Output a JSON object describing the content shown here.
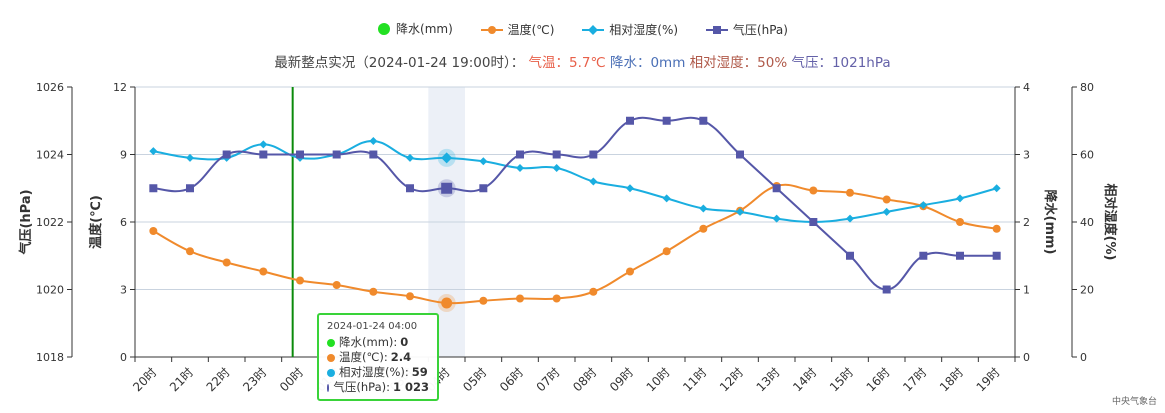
{
  "legend": {
    "items": [
      {
        "label": "降水(mm)",
        "color": "#22e022",
        "marker": "circle"
      },
      {
        "label": "温度(℃)",
        "color": "#f08a2c",
        "marker": "line-circle"
      },
      {
        "label": "相对湿度(%)",
        "color": "#1aaee0",
        "marker": "line-diamond"
      },
      {
        "label": "气压(hPa)",
        "color": "#5557a8",
        "marker": "line-square"
      }
    ]
  },
  "subtitle": {
    "prefix": "最新整点实况（2024-01-24 19:00时）：",
    "temp": "气温：5.7℃",
    "rain": "降水：0mm",
    "hum": "相对湿度：50%",
    "pres": "气压：1021hPa"
  },
  "tooltip": {
    "time": "2024-01-24 04:00",
    "rows": [
      {
        "label": "降水(mm):",
        "value": "0",
        "color": "#22e022"
      },
      {
        "label": "温度(℃):",
        "value": "2.4",
        "color": "#f08a2c"
      },
      {
        "label": "相对湿度(%):",
        "value": "59",
        "color": "#1aaee0"
      },
      {
        "label": "气压(hPa):",
        "value": "1 023",
        "color": "#5557a8"
      }
    ]
  },
  "source": "中央气象台",
  "chart_data": {
    "type": "line",
    "categories": [
      "20时",
      "21时",
      "22时",
      "23时",
      "00时",
      "01时",
      "02时",
      "03时",
      "04时",
      "05时",
      "06时",
      "07时",
      "08时",
      "09时",
      "10时",
      "11时",
      "12时",
      "13时",
      "14时",
      "15时",
      "16时",
      "17时",
      "18时",
      "19时"
    ],
    "series": [
      {
        "name": "温度(℃)",
        "axis": "temp",
        "color": "#f08a2c",
        "marker": "circle",
        "values": [
          5.6,
          4.7,
          4.2,
          3.8,
          3.4,
          3.2,
          2.9,
          2.7,
          2.4,
          2.5,
          2.6,
          2.6,
          2.9,
          3.8,
          4.7,
          5.7,
          6.5,
          7.6,
          7.4,
          7.3,
          7.0,
          6.7,
          6.0,
          5.7
        ]
      },
      {
        "name": "相对湿度(%)",
        "axis": "hum",
        "color": "#1aaee0",
        "marker": "diamond",
        "values": [
          61,
          59,
          59,
          63,
          59,
          60,
          64,
          59,
          59,
          58,
          56,
          56,
          52,
          50,
          47,
          44,
          43,
          41,
          40,
          41,
          43,
          45,
          47,
          50
        ]
      },
      {
        "name": "气压(hPa)",
        "axis": "pres",
        "color": "#5557a8",
        "marker": "square",
        "values": [
          1023,
          1023,
          1024,
          1024,
          1024,
          1024,
          1024,
          1023,
          1023,
          1023,
          1024,
          1024,
          1024,
          1025,
          1025,
          1025,
          1024,
          1023,
          1022,
          1021,
          1020,
          1021,
          1021,
          1021
        ]
      },
      {
        "name": "降水(mm)",
        "axis": "rain",
        "color": "#22e022",
        "marker": "circle",
        "values": [
          0,
          0,
          0,
          0,
          0,
          0,
          0,
          0,
          0,
          0,
          0,
          0,
          0,
          0,
          0,
          0,
          0,
          0,
          0,
          0,
          0,
          0,
          0,
          0
        ]
      }
    ],
    "axes": {
      "pres": {
        "label": "气压(hPa)",
        "range": [
          1018,
          1026
        ],
        "ticks": [
          "1018",
          "1020",
          "1022",
          "1024",
          "1026"
        ],
        "position": "left-outer"
      },
      "temp": {
        "label": "温度(℃)",
        "range": [
          0,
          12
        ],
        "ticks": [
          "0",
          "3",
          "6",
          "9",
          "12"
        ],
        "position": "left-inner"
      },
      "rain": {
        "label": "降水(mm)",
        "range": [
          0,
          4
        ],
        "ticks": [
          "0",
          "1",
          "2",
          "3",
          "4"
        ],
        "position": "right-inner"
      },
      "hum": {
        "label": "相对湿度(%)",
        "range": [
          0,
          80
        ],
        "ticks": [
          "0",
          "20",
          "40",
          "60",
          "80"
        ],
        "position": "right-outer"
      }
    },
    "current_marker": "00时",
    "highlight_category": "04时",
    "grid": true
  }
}
